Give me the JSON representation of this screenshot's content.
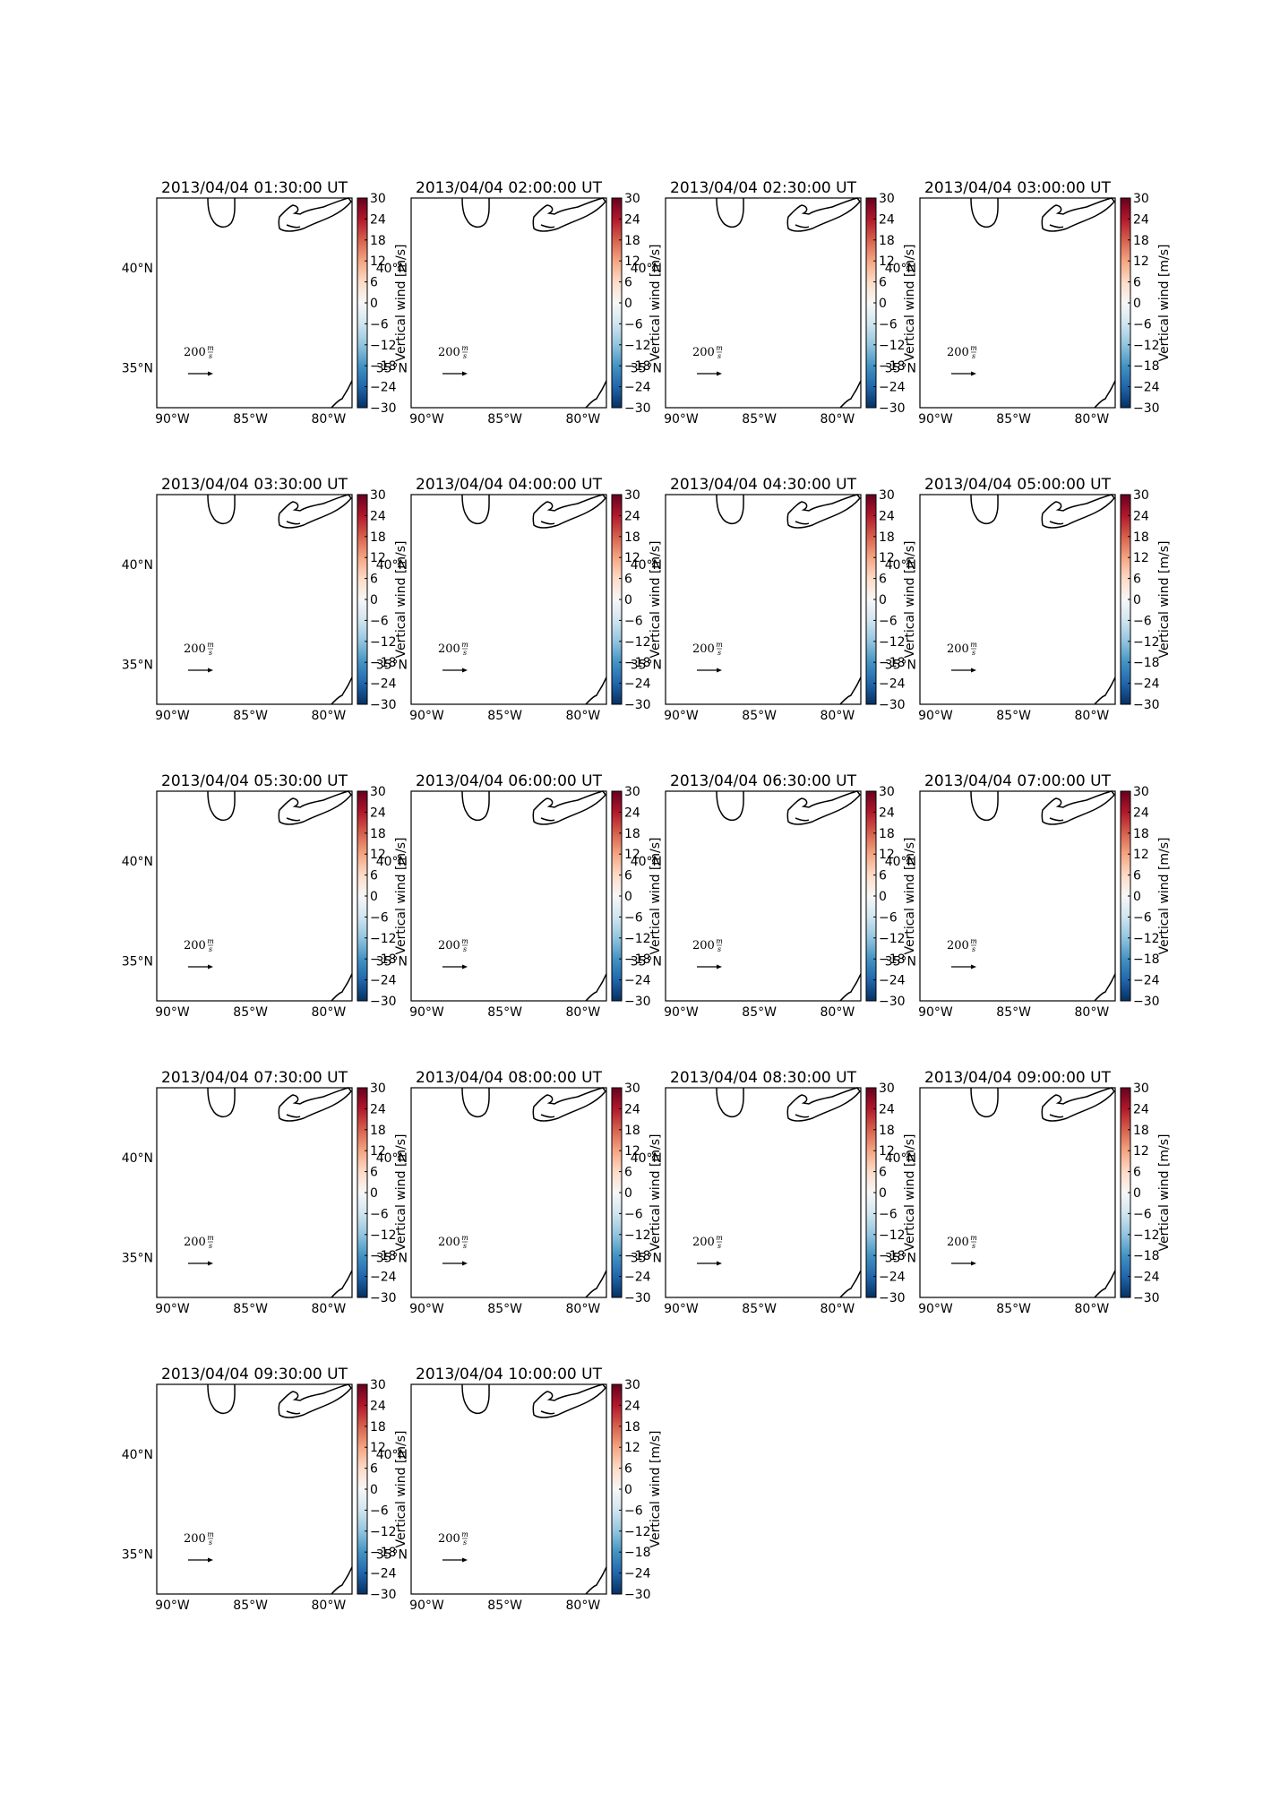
{
  "figure": {
    "panel_titles": [
      "2013/04/04 01:30:00 UT",
      "2013/04/04 02:00:00 UT",
      "2013/04/04 02:30:00 UT",
      "2013/04/04 03:00:00 UT",
      "2013/04/04 03:30:00 UT",
      "2013/04/04 04:00:00 UT",
      "2013/04/04 04:30:00 UT",
      "2013/04/04 05:00:00 UT",
      "2013/04/04 05:30:00 UT",
      "2013/04/04 06:00:00 UT",
      "2013/04/04 06:30:00 UT",
      "2013/04/04 07:00:00 UT",
      "2013/04/04 07:30:00 UT",
      "2013/04/04 08:00:00 UT",
      "2013/04/04 08:30:00 UT",
      "2013/04/04 09:00:00 UT",
      "2013/04/04 09:30:00 UT",
      "2013/04/04 10:00:00 UT"
    ],
    "lon_tick_labels": [
      "90°W",
      "85°W",
      "80°W"
    ],
    "lat_tick_labels": [
      "40°N",
      "35°N"
    ],
    "map_extent": {
      "lon": [
        -91,
        -78.5
      ],
      "lat": [
        33,
        43.5
      ]
    },
    "lon_ticks": [
      -90,
      -85,
      -80
    ],
    "lat_ticks": [
      40,
      35
    ],
    "colorbar": {
      "label": "Vertical wind [m/s]",
      "tick_labels": [
        "30",
        "24",
        "18",
        "12",
        "6",
        "0",
        "−6",
        "−12",
        "−18",
        "−24",
        "−30"
      ],
      "tick_values": [
        30,
        24,
        18,
        12,
        6,
        0,
        -6,
        -12,
        -18,
        -24,
        -30
      ],
      "range": [
        -30,
        30
      ],
      "colormap": [
        "#053061",
        "#2166ac",
        "#4393c3",
        "#92c5de",
        "#d1e5f0",
        "#f7f7f7",
        "#fddbc7",
        "#f4a582",
        "#d6604d",
        "#b2182b",
        "#67001f"
      ]
    },
    "quiver_key": {
      "value": "200",
      "unit_numerator": "m",
      "unit_denominator": "s"
    }
  }
}
